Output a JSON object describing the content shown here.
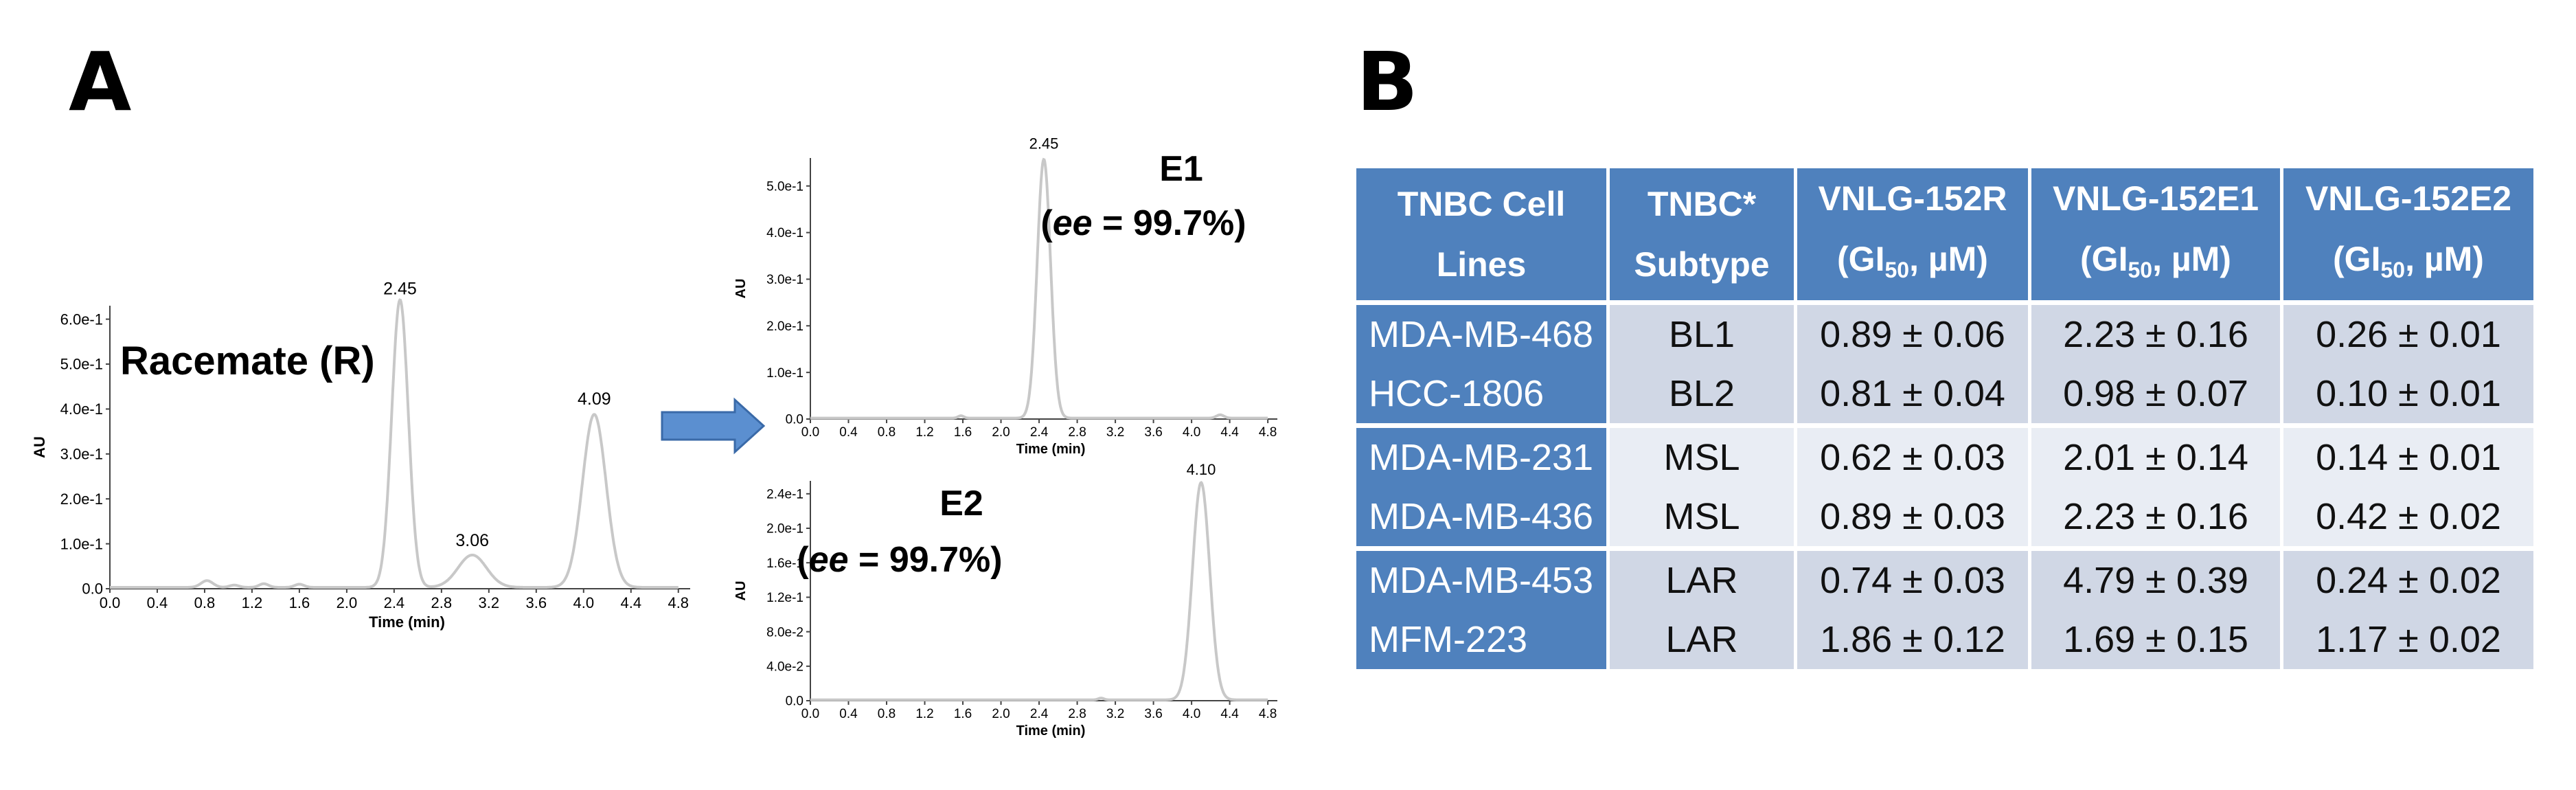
{
  "panels": {
    "a_label": "A",
    "b_label": "B"
  },
  "chart_data": [
    {
      "type": "line",
      "id": "racemate",
      "annotation": "Racemate (R)",
      "xlabel": "Time (min)",
      "ylabel": "AU",
      "xlim": [
        0.0,
        4.9
      ],
      "ylim": [
        0.0,
        6.3
      ],
      "x_ticks": [
        "0.0",
        "0.4",
        "0.8",
        "1.2",
        "1.6",
        "2.0",
        "2.4",
        "2.8",
        "3.2",
        "3.6",
        "4.0",
        "4.4",
        "4.8"
      ],
      "y_ticks": [
        {
          "label": "0.0",
          "value": 0.0
        },
        {
          "label": "1.0e-1",
          "value": 1.0
        },
        {
          "label": "2.0e-1",
          "value": 2.0
        },
        {
          "label": "3.0e-1",
          "value": 3.0
        },
        {
          "label": "4.0e-1",
          "value": 4.0
        },
        {
          "label": "5.0e-1",
          "value": 5.0
        },
        {
          "label": "6.0e-1",
          "value": 6.0
        }
      ],
      "baseline": 0.03,
      "peaks": [
        {
          "t": 0.82,
          "h": 0.15,
          "w": 0.05
        },
        {
          "t": 1.05,
          "h": 0.05,
          "w": 0.04
        },
        {
          "t": 1.3,
          "h": 0.08,
          "w": 0.04
        },
        {
          "t": 1.6,
          "h": 0.07,
          "w": 0.04
        },
        {
          "t": 2.45,
          "h": 6.4,
          "w": 0.07
        },
        {
          "t": 3.06,
          "h": 0.72,
          "w": 0.12
        },
        {
          "t": 4.09,
          "h": 3.85,
          "w": 0.1
        }
      ],
      "peak_labels": [
        {
          "label": "2.45",
          "t": 2.45,
          "y": 6.55
        },
        {
          "label": "3.06",
          "t": 3.06,
          "y": 0.95
        },
        {
          "label": "4.09",
          "t": 4.09,
          "y": 4.1
        }
      ]
    },
    {
      "type": "line",
      "id": "e1",
      "annotation": "E1",
      "annotation2": "(ee = 99.7%)",
      "xlabel": "Time (min)",
      "ylabel": "AU",
      "xlim": [
        0.0,
        4.9
      ],
      "ylim": [
        0.0,
        5.6
      ],
      "x_ticks": [
        "0.0",
        "0.4",
        "0.8",
        "1.2",
        "1.6",
        "2.0",
        "2.4",
        "2.8",
        "3.2",
        "3.6",
        "4.0",
        "4.4",
        "4.8"
      ],
      "y_ticks": [
        {
          "label": "0.0",
          "value": 0.0
        },
        {
          "label": "1.0e-1",
          "value": 1.0
        },
        {
          "label": "2.0e-1",
          "value": 2.0
        },
        {
          "label": "3.0e-1",
          "value": 3.0
        },
        {
          "label": "4.0e-1",
          "value": 4.0
        },
        {
          "label": "5.0e-1",
          "value": 5.0
        }
      ],
      "baseline": 0.02,
      "peaks": [
        {
          "t": 1.58,
          "h": 0.05,
          "w": 0.03
        },
        {
          "t": 2.45,
          "h": 5.55,
          "w": 0.07
        },
        {
          "t": 4.3,
          "h": 0.07,
          "w": 0.04
        }
      ],
      "peak_labels": [
        {
          "label": "2.45",
          "t": 2.45,
          "y": 5.8
        }
      ]
    },
    {
      "type": "line",
      "id": "e2",
      "annotation": "E2",
      "annotation2": "(ee = 99.7%)",
      "xlabel": "Time (min)",
      "ylabel": "AU",
      "xlim": [
        0.0,
        4.9
      ],
      "ylim": [
        0.0,
        2.55
      ],
      "x_ticks": [
        "0.0",
        "0.4",
        "0.8",
        "1.2",
        "1.6",
        "2.0",
        "2.4",
        "2.8",
        "3.2",
        "3.6",
        "4.0",
        "4.4",
        "4.8"
      ],
      "y_ticks": [
        {
          "label": "0.0",
          "value": 0.0
        },
        {
          "label": "4.0e-2",
          "value": 0.4
        },
        {
          "label": "8.0e-2",
          "value": 0.8
        },
        {
          "label": "1.2e-1",
          "value": 1.2
        },
        {
          "label": "1.6e-1",
          "value": 1.6
        },
        {
          "label": "2.0e-1",
          "value": 2.0
        },
        {
          "label": "2.4e-1",
          "value": 2.4
        }
      ],
      "baseline": 0.01,
      "peaks": [
        {
          "t": 3.05,
          "h": 0.02,
          "w": 0.03
        },
        {
          "t": 4.1,
          "h": 2.52,
          "w": 0.09
        }
      ],
      "peak_labels": [
        {
          "label": "4.10",
          "t": 4.1,
          "y": 2.62
        }
      ]
    }
  ],
  "table": {
    "headers": [
      {
        "line1": "TNBC Cell",
        "line2": "Lines"
      },
      {
        "line1": "TNBC*",
        "line2": "Subtype"
      },
      {
        "line1": "VNLG-152R",
        "line2a": "(GI",
        "sub": "50",
        "line2b": ", µM)"
      },
      {
        "line1": "VNLG-152E1",
        "line2a": "(GI",
        "sub": "50",
        "line2b": ", µM)"
      },
      {
        "line1": "VNLG-152E2",
        "line2a": "(GI",
        "sub": "50",
        "line2b": ", µM)"
      }
    ],
    "rows": [
      {
        "line": "MDA-MB-468",
        "subtype": "BL1",
        "r": "0.89 ± 0.06",
        "e1": "2.23 ± 0.16",
        "e2": "0.26 ± 0.01"
      },
      {
        "line": "HCC-1806",
        "subtype": "BL2",
        "r": "0.81 ± 0.04",
        "e1": "0.98 ± 0.07",
        "e2": "0.10 ± 0.01"
      },
      {
        "line": "MDA-MB-231",
        "subtype": "MSL",
        "r": "0.62 ± 0.03",
        "e1": "2.01 ± 0.14",
        "e2": "0.14 ± 0.01"
      },
      {
        "line": "MDA-MB-436",
        "subtype": "MSL",
        "r": "0.89 ± 0.03",
        "e1": "2.23 ± 0.16",
        "e2": "0.42 ± 0.02"
      },
      {
        "line": "MDA-MB-453",
        "subtype": "LAR",
        "r": "0.74 ± 0.03",
        "e1": "4.79 ± 0.39",
        "e2": "0.24 ± 0.02"
      },
      {
        "line": "MFM-223",
        "subtype": "LAR",
        "r": "1.86 ± 0.12",
        "e1": "1.69 ± 0.15",
        "e2": "1.17 ± 0.02"
      }
    ]
  },
  "colors": {
    "trace": "#c8c8c8",
    "arrow": "#5b8fd0",
    "arrow_edge": "#3a6aa8",
    "header": "#4f81bd"
  }
}
